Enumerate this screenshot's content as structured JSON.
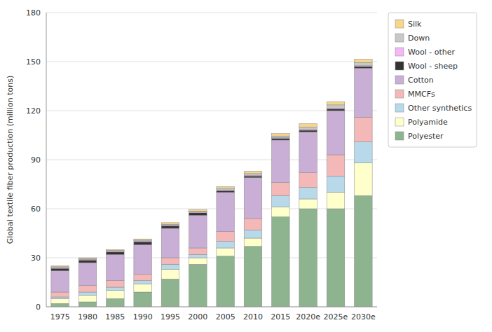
{
  "chart_data": {
    "type": "bar",
    "stacked": true,
    "categories": [
      "1975",
      "1980",
      "1985",
      "1990",
      "1995",
      "2000",
      "2005",
      "2010",
      "2015",
      "2020e",
      "2025e",
      "2030e"
    ],
    "series": [
      {
        "name": "Polyester",
        "color": "#8db48e",
        "values": [
          2,
          3,
          5,
          9,
          17,
          26,
          31,
          37,
          55,
          60,
          60,
          68
        ]
      },
      {
        "name": "Polyamide",
        "color": "#ffffcc",
        "values": [
          3,
          4,
          5,
          5,
          6,
          4,
          5,
          5,
          6,
          6,
          10,
          20
        ]
      },
      {
        "name": "Other synthetics",
        "color": "#b8d9ea",
        "values": [
          1,
          2,
          2,
          2,
          3,
          2,
          4,
          5,
          7,
          7,
          10,
          13
        ]
      },
      {
        "name": "MMCFs",
        "color": "#f4b8b8",
        "values": [
          3,
          4,
          4,
          4,
          4,
          4,
          6,
          7,
          8,
          9,
          13,
          15
        ]
      },
      {
        "name": "Cotton",
        "color": "#c9aed6",
        "values": [
          13,
          14,
          16,
          18,
          18,
          20,
          24,
          25,
          26,
          25,
          27,
          30
        ]
      },
      {
        "name": "Wool - sheep",
        "color": "#333333",
        "values": [
          1.5,
          1.5,
          1.5,
          1.8,
          1.5,
          1.5,
          1,
          1,
          1,
          1,
          1,
          1
        ]
      },
      {
        "name": "Wool - other",
        "color": "#f4b8f4",
        "values": [
          0.5,
          0.5,
          0.5,
          0.5,
          0.5,
          0.5,
          0.5,
          0.5,
          0.5,
          0.5,
          0.5,
          0.5
        ]
      },
      {
        "name": "Down",
        "color": "#c8c8c8",
        "values": [
          0.5,
          0.5,
          0.5,
          0.5,
          0.5,
          0.5,
          1,
          1,
          1,
          1.5,
          2,
          2
        ]
      },
      {
        "name": "Silk",
        "color": "#f5d68a",
        "values": [
          0.5,
          0.5,
          0.5,
          0.7,
          1,
          1,
          1,
          1.5,
          1.5,
          2,
          2,
          2
        ]
      }
    ],
    "ylabel": "Global textile fiber production (million tons)",
    "ylim": [
      0,
      180
    ],
    "yticks": [
      0,
      30,
      60,
      90,
      120,
      150,
      180
    ],
    "grid": true,
    "legend": "right"
  }
}
